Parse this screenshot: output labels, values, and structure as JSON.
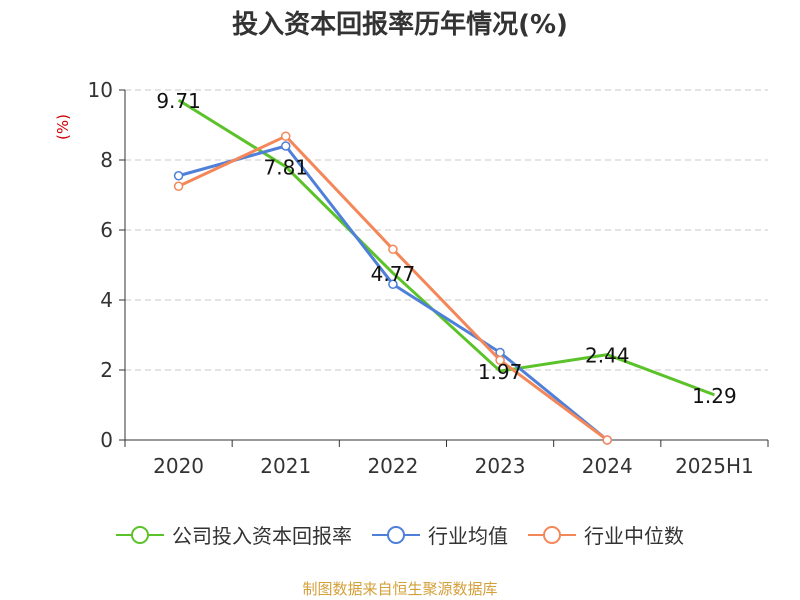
{
  "title": "投入资本回报率历年情况(%)",
  "source": "制图数据来自恒生聚源数据库",
  "colors": {
    "company": "#5cc22a",
    "industry_avg": "#4e7fd9",
    "industry_median": "#f4875a",
    "ylabel": "#cc0000",
    "source": "#d4a03a"
  },
  "chart_data": {
    "type": "line",
    "title": "投入资本回报率历年情况(%)",
    "ylabel": "(%)",
    "xlabel": "",
    "categories": [
      "2020",
      "2021",
      "2022",
      "2023",
      "2024",
      "2025H1"
    ],
    "ylim": [
      0,
      10
    ],
    "yticks": [
      "0",
      "2",
      "4",
      "6",
      "8",
      "10"
    ],
    "grid": true,
    "legend_position": "bottom",
    "series": [
      {
        "name": "公司投入资本回报率",
        "values": [
          9.71,
          7.81,
          4.77,
          1.97,
          2.44,
          1.29
        ],
        "labels": [
          "9.71",
          "7.81",
          "4.77",
          "1.97",
          "2.44",
          "1.29"
        ]
      },
      {
        "name": "行业均值",
        "values": [
          7.55,
          8.4,
          4.45,
          2.5,
          0.0,
          null
        ]
      },
      {
        "name": "行业中位数",
        "values": [
          7.25,
          8.68,
          5.45,
          2.28,
          0.0,
          null
        ]
      }
    ]
  }
}
